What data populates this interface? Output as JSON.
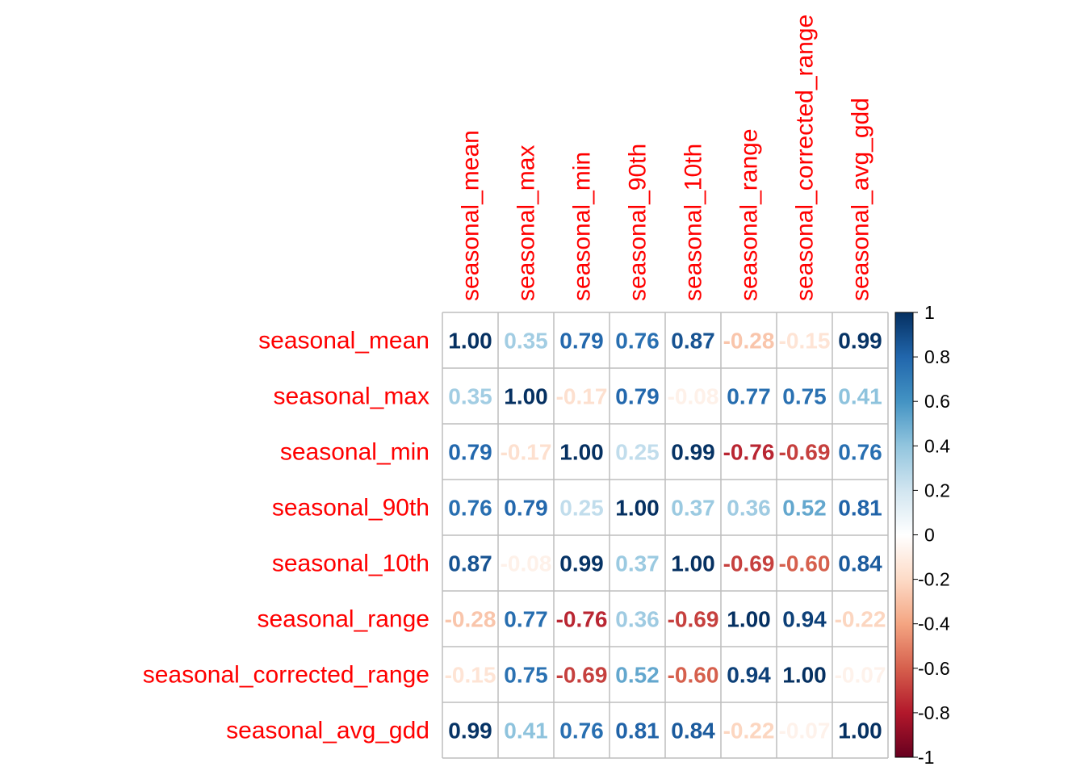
{
  "chart_data": {
    "type": "heatmap",
    "title": "",
    "variables": [
      "seasonal_mean",
      "seasonal_max",
      "seasonal_min",
      "seasonal_90th",
      "seasonal_10th",
      "seasonal_range",
      "seasonal_corrected_range",
      "seasonal_avg_gdd"
    ],
    "matrix": [
      [
        1.0,
        0.35,
        0.79,
        0.76,
        0.87,
        -0.28,
        -0.15,
        0.99
      ],
      [
        0.35,
        1.0,
        -0.17,
        0.79,
        -0.08,
        0.77,
        0.75,
        0.41
      ],
      [
        0.79,
        -0.17,
        1.0,
        0.25,
        0.99,
        -0.76,
        -0.69,
        0.76
      ],
      [
        0.76,
        0.79,
        0.25,
        1.0,
        0.37,
        0.36,
        0.52,
        0.81
      ],
      [
        0.87,
        -0.08,
        0.99,
        0.37,
        1.0,
        -0.69,
        -0.6,
        0.84
      ],
      [
        -0.28,
        0.77,
        -0.76,
        0.36,
        -0.69,
        1.0,
        0.94,
        -0.22
      ],
      [
        -0.15,
        0.75,
        -0.69,
        0.52,
        -0.6,
        0.94,
        1.0,
        -0.07
      ],
      [
        0.99,
        0.41,
        0.76,
        0.81,
        0.84,
        -0.22,
        -0.07,
        1.0
      ]
    ],
    "value_labels_shown": true,
    "color_scale": {
      "range": [
        -1,
        1
      ],
      "ticks": [
        "1",
        "0.8",
        "0.6",
        "0.4",
        "0.2",
        "0",
        "-0.2",
        "-0.4",
        "-0.6",
        "-0.8",
        "-1"
      ],
      "colors_low_to_high": [
        "#67001f",
        "#b2182b",
        "#d6604d",
        "#f4a582",
        "#fddbc7",
        "#ffffff",
        "#d1e5f0",
        "#92c5de",
        "#4393c3",
        "#2166ac",
        "#053061"
      ]
    },
    "label_color": "#ff0000",
    "grid_color": "#bebebe"
  }
}
